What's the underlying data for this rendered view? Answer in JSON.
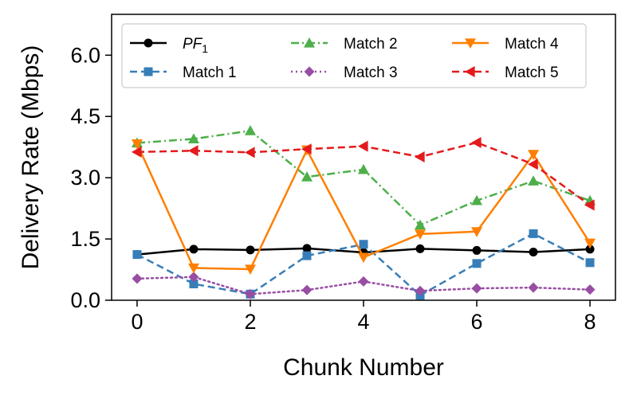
{
  "chart_data": {
    "type": "line",
    "title": "",
    "xlabel": "Chunk Number",
    "ylabel": "Delivery Rate (Mbps)",
    "xlim": [
      -0.45,
      8.45
    ],
    "ylim": [
      0,
      7.0
    ],
    "xticks": [
      0,
      2,
      4,
      6,
      8
    ],
    "xtick_labels": [
      "0",
      "2",
      "4",
      "6",
      "8"
    ],
    "yticks": [
      0,
      1.5,
      3.0,
      4.5,
      6.0
    ],
    "ytick_labels": [
      "0.0",
      "1.5",
      "3.0",
      "4.5",
      "6.0"
    ],
    "grid": false,
    "legend_position": "top",
    "x": [
      0,
      1,
      2,
      3,
      4,
      5,
      6,
      7,
      8
    ],
    "series": [
      {
        "name": "PF",
        "name_subscript": "1",
        "color": "#000000",
        "marker": "circle",
        "dash": "solid",
        "values": [
          1.12,
          1.25,
          1.23,
          1.27,
          1.17,
          1.26,
          1.22,
          1.18,
          1.25
        ]
      },
      {
        "name": "Match 1",
        "color": "#377eb8",
        "marker": "square",
        "dash": "dashed",
        "values": [
          1.12,
          0.4,
          0.15,
          1.09,
          1.37,
          0.12,
          0.9,
          1.63,
          0.92
        ]
      },
      {
        "name": "Match 2",
        "color": "#4daf4a",
        "marker": "triangle-up",
        "dash": "dashdot",
        "values": [
          3.85,
          3.95,
          4.15,
          3.02,
          3.2,
          1.84,
          2.44,
          2.92,
          2.44
        ]
      },
      {
        "name": "Match 3",
        "color": "#984ea3",
        "marker": "diamond",
        "dash": "dotted",
        "values": [
          0.53,
          0.57,
          0.15,
          0.25,
          0.46,
          0.23,
          0.29,
          0.31,
          0.26
        ]
      },
      {
        "name": "Match 4",
        "color": "#ff7f00",
        "marker": "triangle-down",
        "dash": "solid",
        "values": [
          3.83,
          0.79,
          0.76,
          3.68,
          1.05,
          1.62,
          1.68,
          3.57,
          1.4
        ]
      },
      {
        "name": "Match 5",
        "color": "#e41a1c",
        "marker": "triangle-left",
        "dash": "dashed",
        "values": [
          3.63,
          3.66,
          3.62,
          3.7,
          3.77,
          3.51,
          3.86,
          3.33,
          2.33
        ]
      }
    ]
  }
}
